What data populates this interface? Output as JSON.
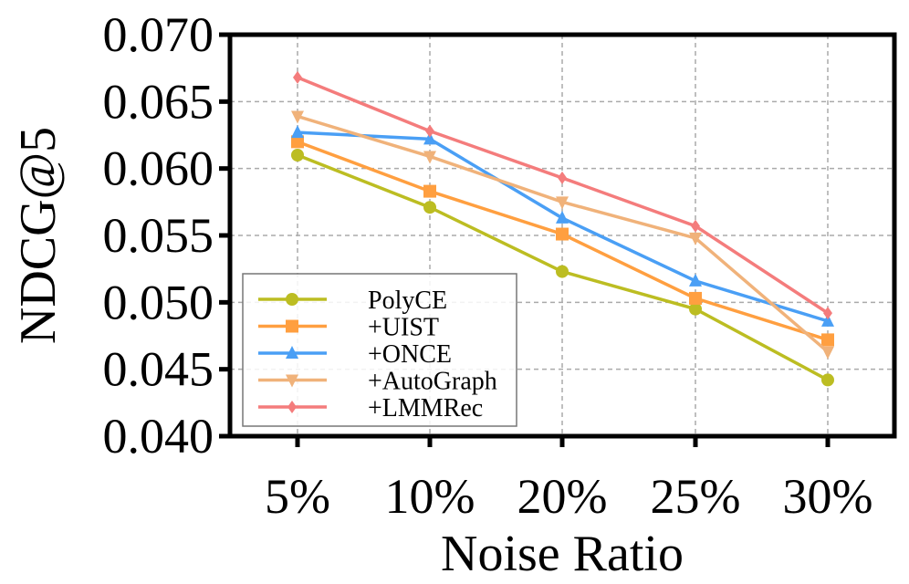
{
  "chart_data": {
    "type": "line",
    "title": "",
    "xlabel": "Noise Ratio",
    "ylabel": "NDCG@5",
    "categories": [
      "5%",
      "10%",
      "20%",
      "25%",
      "30%"
    ],
    "ylim": [
      0.04,
      0.07
    ],
    "yticks": [
      "0.040",
      "0.045",
      "0.050",
      "0.055",
      "0.060",
      "0.065",
      "0.070"
    ],
    "grid": true,
    "legend_position": "bottom-left",
    "series": [
      {
        "name": "PolyCE",
        "color": "#bcbd22",
        "marker": "circle",
        "values": [
          0.061,
          0.0571,
          0.0523,
          0.0495,
          0.0442
        ]
      },
      {
        "name": "+UIST",
        "color": "#ff9f40",
        "marker": "square",
        "values": [
          0.062,
          0.0583,
          0.0551,
          0.0503,
          0.0472
        ]
      },
      {
        "name": "+ONCE",
        "color": "#4a9ff5",
        "marker": "triangle-up",
        "values": [
          0.0627,
          0.0622,
          0.0563,
          0.0516,
          0.0486
        ]
      },
      {
        "name": "+AutoGraph",
        "color": "#f0b27a",
        "marker": "triangle-down",
        "values": [
          0.0639,
          0.0609,
          0.0575,
          0.0548,
          0.0463
        ]
      },
      {
        "name": "+LMMRec",
        "color": "#f47c7c",
        "marker": "diamond",
        "values": [
          0.0668,
          0.0628,
          0.0593,
          0.0557,
          0.0492
        ]
      }
    ]
  }
}
